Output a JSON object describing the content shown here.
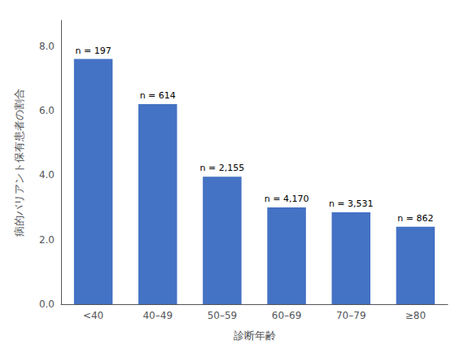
{
  "chart_data": {
    "type": "bar",
    "categories": [
      "<40",
      "40–49",
      "50–59",
      "60–69",
      "70–79",
      "≥80"
    ],
    "values": [
      7.6,
      6.2,
      3.95,
      3.0,
      2.85,
      2.4
    ],
    "annotations": [
      "n = 197",
      "n = 614",
      "n = 2,155",
      "n = 4,170",
      "n = 3,531",
      "n = 862"
    ],
    "color": "#4472C4",
    "xlabel": "診断年齢",
    "ylabel": "病的バリアント保有患者の割合",
    "ylim": [
      0,
      8.8
    ],
    "yticks": [
      {
        "value": 0.0,
        "label": "0.0"
      },
      {
        "value": 2.0,
        "label": "2.0"
      },
      {
        "value": 4.0,
        "label": "4.0"
      },
      {
        "value": 6.0,
        "label": "6.0"
      },
      {
        "value": 8.0,
        "label": "8.0"
      }
    ],
    "grid": false
  }
}
